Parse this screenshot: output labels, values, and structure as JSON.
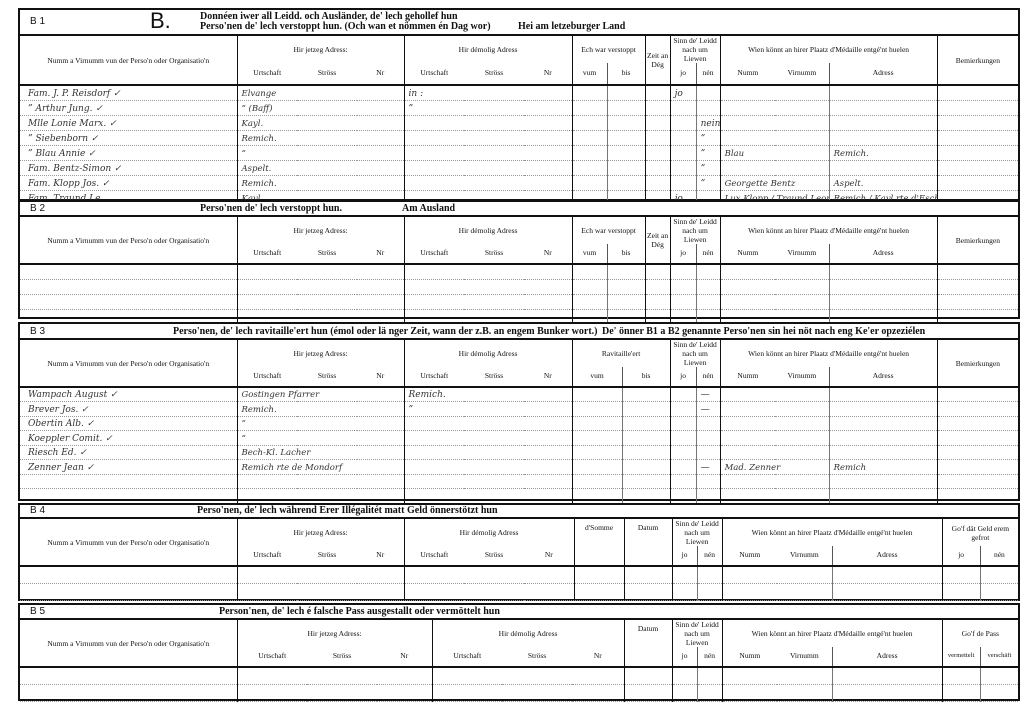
{
  "common": {
    "name_col": "Numm a Virnumm vun der Perso'n oder Organisatio'n",
    "hir_jetzeg": "Hir jetzeg Adress:",
    "hir_demolig": "Hir démolig Adress",
    "urtschaft": "Urtschaft",
    "stross": "Ströss",
    "nr": "Nr",
    "vum": "vum",
    "bis": "bis",
    "zeit": "Zeit an Dég",
    "sinn": "Sinn de' Leidd nach um Liewen",
    "jo": "jo",
    "nen": "nén",
    "wien": "Wien könnt an hirer Plaatz d'Médaille entgé'nt huelen",
    "numm": "Numm",
    "virnumm": "Virnumm",
    "adress": "Adress",
    "bemierkungen": "Bemierkungen",
    "datum": "Datum"
  },
  "b1": {
    "code": "B 1",
    "big_letter": "B.",
    "title_line1": "Donnéen iwer all Leidd. och Ausländer, de' lech gehollef hun",
    "title_line2": "Perso'nen de' lech verstoppt hun. (Och wan et nömmen én Dag wor)",
    "title_right": "Hei am letzeburger Land",
    "verstoppt": "Ech war verstoppt",
    "rows": [
      {
        "name": "Fam. J. P. Reisdorf ✓",
        "jetzeg": "Elvange",
        "demolig": "      in :",
        "jo": "jo",
        "nen": "",
        "wnumm": "",
        "wadress": ""
      },
      {
        "name": "  ”  Arthur Jung. ✓",
        "jetzeg": "  ”    (Baff)",
        "demolig": "      ”",
        "jo": "",
        "nen": "",
        "wnumm": "",
        "wadress": ""
      },
      {
        "name": "Mlle Lonie Marx. ✓",
        "jetzeg": "Kayl.",
        "demolig": "",
        "jo": "",
        "nen": "nein",
        "wnumm": "",
        "wadress": ""
      },
      {
        "name": "  ”  Siebenborn ✓",
        "jetzeg": "Remich.",
        "demolig": "",
        "jo": "",
        "nen": "”",
        "wnumm": "",
        "wadress": ""
      },
      {
        "name": "  ”  Blau Annie ✓",
        "jetzeg": "  ”",
        "demolig": "",
        "jo": "",
        "nen": "”",
        "wnumm": "Blau",
        "wadress": "Remich."
      },
      {
        "name": "Fam. Bentz-Simon ✓",
        "jetzeg": "Aspelt.",
        "demolig": "",
        "jo": "",
        "nen": "”",
        "wnumm": "",
        "wadress": ""
      },
      {
        "name": "Fam. Klopp Jos. ✓",
        "jetzeg": "Remich.",
        "demolig": "",
        "jo": "",
        "nen": "”",
        "wnumm": "Georgette Bentz",
        "wadress": "Aspelt."
      },
      {
        "name": "Fam. Traund Le.",
        "jetzeg": "Kayl.",
        "demolig": "",
        "jo": "jo.",
        "nen": "",
        "wnumm": "Lux Klopp / Traund Leon",
        "wadress": "Remich / Kayl rte d'Esch."
      }
    ]
  },
  "b2": {
    "code": "B 2",
    "title": "Perso'nen de' lech verstoppt hun.",
    "title_right": "Am Ausland",
    "verstoppt": "Ech war verstoppt",
    "rows": [
      {},
      {},
      {},
      {}
    ]
  },
  "b3": {
    "code": "B 3",
    "title": "Perso'nen, de' lech ravitaille'ert hun (émol oder lä nger Zeit, wann der z.B. an engem Bunker wort.)",
    "title_right": "De' önner B1 a B2 genannte Perso'nen sin hei nöt nach eng Ke'er opzeziélen",
    "ravitailleert": "Ravitaille'ert",
    "rows": [
      {
        "name": "Wampach August  ✓",
        "jetzeg": "Gostingen Pfarrer",
        "demolig": "Remich.",
        "nen": "—"
      },
      {
        "name": "Brever Jos.  ✓",
        "jetzeg": "Remich.",
        "demolig": "   ”",
        "nen": "—"
      },
      {
        "name": "Obertin Alb.  ✓",
        "jetzeg": "  ”"
      },
      {
        "name": "Koeppler Comit. ✓",
        "jetzeg": "  ”"
      },
      {
        "name": "Riesch Ed.  ✓",
        "jetzeg": "Bech-Kl. Lacher"
      },
      {
        "name": "Zenner Jean  ✓",
        "jetzeg": "Remich rte de Mondorf",
        "nen": "—",
        "wnumm": "Mad. Zenner",
        "wadress": "Remich"
      },
      {},
      {}
    ]
  },
  "b4": {
    "code": "B 4",
    "title": "Perso'nen, de' lech während Erer Illégalitét matt Geld önnerstötzt hun",
    "somme": "d'Somme",
    "gof": "Go'f dät Geld erem gefrot",
    "rows": [
      {},
      {}
    ]
  },
  "b5": {
    "code": "B 5",
    "title": "Person'nen, de' lech é falsche Pass ausgestallt oder vermöttelt hun",
    "gof": "Go'f de Pass",
    "vermettelt": "vermettelt",
    "verschaft": "verschäft",
    "rows": [
      {},
      {}
    ]
  }
}
